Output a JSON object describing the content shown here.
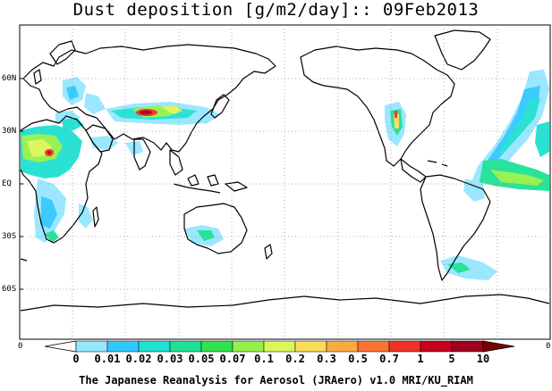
{
  "title": "Dust deposition [g/m2/day]:: 09Feb2013",
  "lat_labels": [
    "60N",
    "30N",
    "EQ",
    "30S",
    "60S"
  ],
  "edge_labels": {
    "left": "0",
    "right": "0"
  },
  "colorbar": {
    "labels": [
      "0",
      "0.01",
      "0.02",
      "0.03",
      "0.05",
      "0.07",
      "0.1",
      "0.2",
      "0.3",
      "0.5",
      "0.7",
      "1",
      "5",
      "10"
    ],
    "colors": [
      "#ffffff",
      "#96e6ff",
      "#32c8ff",
      "#1ee1d2",
      "#1ee196",
      "#32e150",
      "#96f04b",
      "#dcf55a",
      "#fadc5a",
      "#faaa41",
      "#fa7332",
      "#f03228",
      "#c8001e",
      "#a0001e",
      "#780000"
    ]
  },
  "credit": "The Japanese Reanalysis for Aerosol (JRAero) v1.0 MRI/KU_RIAM"
}
